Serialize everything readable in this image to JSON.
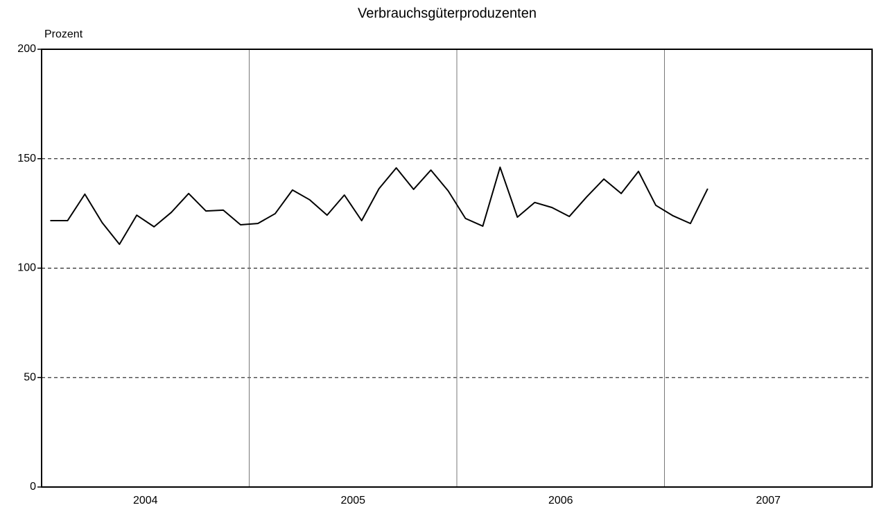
{
  "chart_data": {
    "type": "line",
    "title": "Verbrauchsgüterproduzenten",
    "y_label": "Prozent",
    "categories": [
      null,
      null,
      null,
      null,
      null,
      null,
      null,
      null,
      null,
      null,
      null,
      null,
      null,
      null,
      null,
      null,
      null,
      null,
      null,
      null,
      null,
      null,
      null,
      null,
      null,
      null,
      null,
      null,
      null,
      null,
      null,
      null,
      null,
      null,
      null,
      null,
      null,
      null,
      null,
      null,
      null,
      null,
      null,
      null,
      null,
      null,
      null,
      null
    ],
    "x_groups": [
      "2004",
      "2005",
      "2006",
      "2007"
    ],
    "series": [
      {
        "name": "Verbrauchsgüterproduzenten",
        "color": "#000000",
        "values": [
          121.7,
          121.7,
          133.8,
          120.8,
          110.9,
          124.2,
          118.9,
          125.5,
          134.1,
          126.1,
          126.5,
          119.8,
          120.4,
          124.9,
          135.7,
          131.2,
          124.2,
          133.4,
          121.7,
          136.3,
          145.8,
          136.0,
          144.8,
          135.3,
          122.7,
          119.2,
          146.1,
          123.3,
          130.0,
          127.7,
          123.6,
          132.5,
          140.7,
          134.1,
          144.2,
          128.7,
          123.9,
          120.4,
          136.3,
          null,
          null,
          null,
          null,
          null,
          null,
          null,
          null,
          null
        ]
      }
    ],
    "ylim": [
      0,
      200
    ],
    "yticks": [
      0,
      50,
      100,
      150,
      200
    ],
    "grid": true
  }
}
